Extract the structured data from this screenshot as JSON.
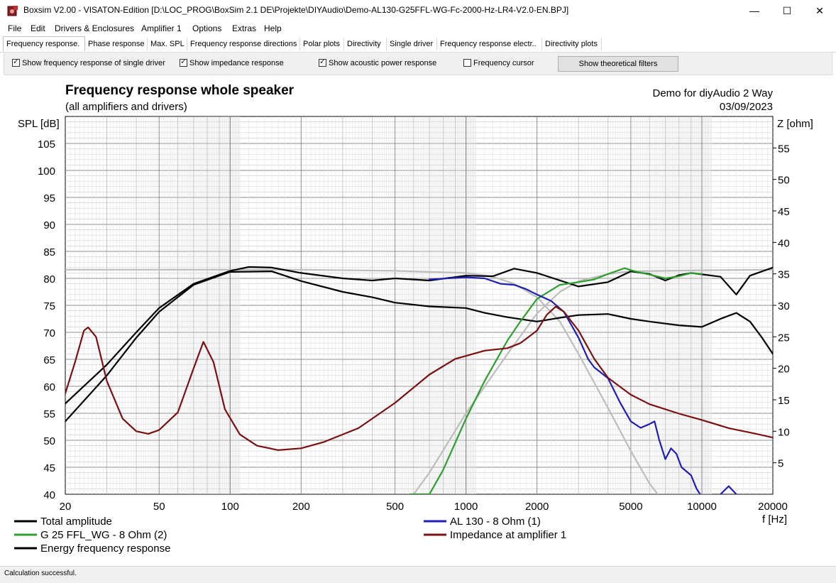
{
  "window": {
    "title": "Boxsim V2.00 - VISATON-Edition [D:\\LOC_PROG\\BoxSim 2.1 DE\\Projekte\\DIYAudio\\Demo-AL130-G25FFL-WG-Fc-2000-Hz-LR4-V2.0-EN.BPJ]",
    "minimize": "—",
    "maximize": "☐",
    "close": "✕"
  },
  "menu": [
    "File",
    "Edit",
    "Drivers & Enclosures",
    "Amplifier 1",
    "Options",
    "Extras",
    "Help"
  ],
  "tabs": [
    "Frequency response.",
    "Phase response",
    "Max. SPL",
    "Frequency response directions",
    "Polar plots",
    "Directivity",
    "Single driver",
    "Frequency response electr..",
    "Directivity plots"
  ],
  "options": {
    "single_driver": {
      "label": "Show frequency response of single driver",
      "checked": true
    },
    "impedance": {
      "label": "Show impedance response",
      "checked": true
    },
    "acoustic_power": {
      "label": "Show acoustic power response",
      "checked": true
    },
    "cursor": {
      "label": "Frequency cursor",
      "checked": false
    },
    "filters_button": "Show theoretical filters",
    "check_glyph": "✓"
  },
  "status": "Calculation successful.",
  "chart_data": {
    "type": "line",
    "title": "Frequency response whole speaker",
    "subtitle": "(all amplifiers and drivers)",
    "project": "Demo for diyAudio 2 Way",
    "date": "03/09/2023",
    "ylabel": "SPL [dB]",
    "y2label": "Z [ohm]",
    "xlabel": "f [Hz]",
    "xscale": "log",
    "xlim": [
      20,
      20000
    ],
    "ylim": [
      40,
      110
    ],
    "y2lim": [
      0,
      60
    ],
    "xticks": [
      20,
      50,
      100,
      200,
      500,
      1000,
      2000,
      5000,
      10000,
      20000
    ],
    "yticks": [
      40,
      45,
      50,
      55,
      60,
      65,
      70,
      75,
      80,
      85,
      90,
      95,
      100,
      105
    ],
    "y2ticks": [
      5,
      10,
      15,
      20,
      25,
      30,
      35,
      40,
      45,
      50,
      55
    ],
    "legend": [
      {
        "name": "Total amplitude",
        "color": "#000000"
      },
      {
        "name": "G 25 FFL_WG - 8 Ohm (2)",
        "color": "#2ca02c"
      },
      {
        "name": "Energy frequency response",
        "color": "#000000"
      },
      {
        "name": "AL 130 - 8 Ohm (1)",
        "color": "#1f1fb4"
      },
      {
        "name": "Impedance at amplifier 1",
        "color": "#7a1010"
      }
    ],
    "series": [
      {
        "name": "Total amplitude",
        "color": "#000000",
        "axis": "left",
        "width": 2.2,
        "points": [
          [
            20,
            56.8
          ],
          [
            30,
            64
          ],
          [
            40,
            70
          ],
          [
            50,
            74.5
          ],
          [
            70,
            79
          ],
          [
            100,
            81.4
          ],
          [
            120,
            82.1
          ],
          [
            150,
            82
          ],
          [
            200,
            81
          ],
          [
            300,
            80
          ],
          [
            400,
            79.6
          ],
          [
            500,
            80
          ],
          [
            700,
            79.6
          ],
          [
            1000,
            80.5
          ],
          [
            1300,
            80.4
          ],
          [
            1600,
            81.8
          ],
          [
            2000,
            81
          ],
          [
            3000,
            78.5
          ],
          [
            4000,
            79.3
          ],
          [
            5000,
            81.3
          ],
          [
            6000,
            80.8
          ],
          [
            7000,
            79.6
          ],
          [
            8000,
            80.6
          ],
          [
            9000,
            81
          ],
          [
            12000,
            80.3
          ],
          [
            14000,
            77
          ],
          [
            16000,
            80.5
          ],
          [
            20000,
            82
          ]
        ]
      },
      {
        "name": "Energy frequency response",
        "color": "#000000",
        "axis": "left",
        "width": 2.2,
        "points": [
          [
            20,
            53.5
          ],
          [
            30,
            62
          ],
          [
            40,
            69
          ],
          [
            50,
            73.8
          ],
          [
            70,
            78.8
          ],
          [
            100,
            81.2
          ],
          [
            150,
            81.3
          ],
          [
            200,
            79.5
          ],
          [
            300,
            77.5
          ],
          [
            400,
            76.5
          ],
          [
            500,
            75.5
          ],
          [
            700,
            74.8
          ],
          [
            1000,
            74.5
          ],
          [
            1200,
            73.6
          ],
          [
            1500,
            72.8
          ],
          [
            2000,
            72
          ],
          [
            2500,
            72.7
          ],
          [
            3000,
            73.2
          ],
          [
            4000,
            73.4
          ],
          [
            5000,
            72.5
          ],
          [
            6000,
            72
          ],
          [
            8000,
            71.3
          ],
          [
            10000,
            71
          ],
          [
            12000,
            72.5
          ],
          [
            14000,
            73.6
          ],
          [
            16000,
            72
          ],
          [
            18000,
            69
          ],
          [
            20000,
            66
          ]
        ]
      },
      {
        "name": "Acoustic power (theoretical, gray)",
        "color": "#bdbdbd",
        "axis": "left",
        "width": 2.2,
        "points": [
          [
            20,
            81.6
          ],
          [
            50,
            81.6
          ],
          [
            100,
            81.6
          ],
          [
            200,
            81.6
          ],
          [
            500,
            81.4
          ],
          [
            1000,
            81
          ],
          [
            1300,
            80.3
          ],
          [
            1600,
            79
          ],
          [
            2000,
            76.5
          ],
          [
            2500,
            72
          ],
          [
            3000,
            66
          ],
          [
            4000,
            56
          ],
          [
            5000,
            48
          ],
          [
            6000,
            42
          ],
          [
            6500,
            40
          ]
        ]
      },
      {
        "name": "Acoustic power tweeter (theoretical, gray)",
        "color": "#bdbdbd",
        "axis": "left",
        "width": 2.2,
        "points": [
          [
            600,
            40
          ],
          [
            700,
            44
          ],
          [
            1000,
            55
          ],
          [
            1500,
            66
          ],
          [
            2000,
            73.5
          ],
          [
            2500,
            77.5
          ],
          [
            3000,
            79.5
          ],
          [
            4000,
            80.8
          ],
          [
            5000,
            81.3
          ],
          [
            7000,
            81.4
          ],
          [
            10000,
            81.5
          ],
          [
            20000,
            81.6
          ]
        ]
      },
      {
        "name": "G 25 FFL_WG - 8 Ohm (2)",
        "color": "#2ca02c",
        "axis": "left",
        "width": 2.2,
        "points": [
          [
            580,
            40
          ],
          [
            700,
            40
          ],
          [
            800,
            44.5
          ],
          [
            1000,
            54
          ],
          [
            1200,
            61
          ],
          [
            1500,
            68.5
          ],
          [
            1700,
            72
          ],
          [
            2000,
            76.2
          ],
          [
            2500,
            78.8
          ],
          [
            3000,
            79.3
          ],
          [
            3500,
            79.8
          ],
          [
            4000,
            80.8
          ],
          [
            4700,
            81.9
          ],
          [
            5200,
            81.3
          ],
          [
            6000,
            80.7
          ],
          [
            7000,
            80
          ],
          [
            8000,
            80.4
          ],
          [
            9000,
            81
          ],
          [
            10000,
            80.8
          ]
        ]
      },
      {
        "name": "AL 130 - 8 Ohm (1)",
        "color": "#1f1fb4",
        "axis": "left",
        "width": 2.2,
        "points": [
          [
            700,
            79.8
          ],
          [
            1000,
            80.2
          ],
          [
            1200,
            80
          ],
          [
            1400,
            79
          ],
          [
            1600,
            78.8
          ],
          [
            1800,
            78
          ],
          [
            2000,
            77
          ],
          [
            2300,
            75.8
          ],
          [
            2600,
            73.8
          ],
          [
            3000,
            69
          ],
          [
            3300,
            65
          ],
          [
            3500,
            63.5
          ],
          [
            4000,
            61.5
          ],
          [
            4500,
            57
          ],
          [
            5000,
            53.5
          ],
          [
            5500,
            52.3
          ],
          [
            6000,
            53
          ],
          [
            6300,
            53.5
          ],
          [
            6600,
            50
          ],
          [
            7000,
            46.5
          ],
          [
            7400,
            48.5
          ],
          [
            7800,
            47.5
          ],
          [
            8200,
            45
          ],
          [
            9000,
            43.5
          ],
          [
            9500,
            41
          ],
          [
            10000,
            39.5
          ]
        ]
      },
      {
        "name": "AL 130 - 8 Ohm (1) b",
        "color": "#1f1fb4",
        "axis": "left",
        "width": 2.2,
        "points": [
          [
            12000,
            40
          ],
          [
            13000,
            41.5
          ],
          [
            14000,
            40
          ]
        ]
      },
      {
        "name": "Impedance at amplifier 1",
        "color": "#7a1010",
        "axis": "right",
        "width": 2.2,
        "points": [
          [
            20,
            16
          ],
          [
            22,
            21
          ],
          [
            24,
            26
          ],
          [
            25,
            26.5
          ],
          [
            27,
            25
          ],
          [
            30,
            18
          ],
          [
            35,
            12
          ],
          [
            40,
            10
          ],
          [
            45,
            9.6
          ],
          [
            50,
            10.2
          ],
          [
            60,
            13
          ],
          [
            70,
            20
          ],
          [
            77,
            24.2
          ],
          [
            85,
            21
          ],
          [
            95,
            13.5
          ],
          [
            110,
            9.5
          ],
          [
            130,
            7.7
          ],
          [
            160,
            7
          ],
          [
            200,
            7.3
          ],
          [
            250,
            8.3
          ],
          [
            350,
            10.5
          ],
          [
            500,
            14.5
          ],
          [
            700,
            19
          ],
          [
            900,
            21.5
          ],
          [
            1200,
            22.8
          ],
          [
            1500,
            23.2
          ],
          [
            1700,
            24
          ],
          [
            2000,
            26
          ],
          [
            2200,
            28.5
          ],
          [
            2400,
            29.8
          ],
          [
            2600,
            29
          ],
          [
            3000,
            26
          ],
          [
            3500,
            21.5
          ],
          [
            4000,
            18.5
          ],
          [
            5000,
            15.8
          ],
          [
            6000,
            14.3
          ],
          [
            8000,
            12.8
          ],
          [
            10000,
            11.8
          ],
          [
            13000,
            10.5
          ],
          [
            17000,
            9.6
          ],
          [
            20000,
            9
          ]
        ]
      }
    ]
  }
}
